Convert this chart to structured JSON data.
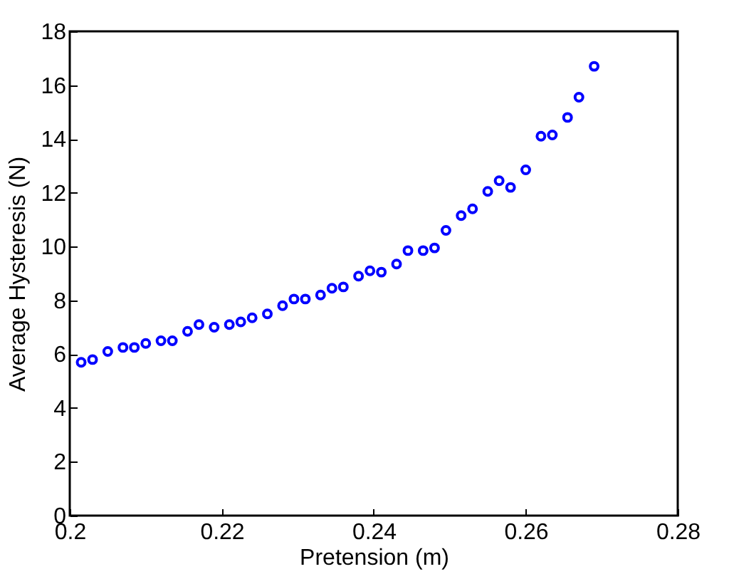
{
  "chart_data": {
    "type": "scatter",
    "xlabel": "Pretension (m)",
    "ylabel": "Average Hysteresis (N)",
    "marker": "circle",
    "grid": false,
    "xlim": [
      0.2,
      0.28
    ],
    "xticks": [
      0.2,
      0.22,
      0.24,
      0.26,
      0.28
    ],
    "ylim": [
      0,
      18
    ],
    "yticks": [
      0,
      2,
      4,
      6,
      8,
      10,
      12,
      14,
      16,
      18
    ],
    "series": [
      {
        "color": "#0000ff",
        "x": [
          0.2015,
          0.203,
          0.205,
          0.207,
          0.2085,
          0.21,
          0.212,
          0.2135,
          0.2155,
          0.217,
          0.219,
          0.221,
          0.2225,
          0.224,
          0.226,
          0.228,
          0.2295,
          0.231,
          0.233,
          0.2345,
          0.236,
          0.238,
          0.2395,
          0.241,
          0.243,
          0.2445,
          0.2465,
          0.248,
          0.2495,
          0.2515,
          0.253,
          0.255,
          0.2565,
          0.258,
          0.26,
          0.262,
          0.2635,
          0.2655,
          0.267,
          0.269
        ],
        "values": [
          5.7,
          5.8,
          6.1,
          6.25,
          6.25,
          6.4,
          6.5,
          6.5,
          6.85,
          7.1,
          7.0,
          7.1,
          7.2,
          7.35,
          7.5,
          7.8,
          8.05,
          8.05,
          8.2,
          8.45,
          8.5,
          8.9,
          9.1,
          9.05,
          9.35,
          9.85,
          9.85,
          9.95,
          10.6,
          11.15,
          11.4,
          12.05,
          12.45,
          12.2,
          12.85,
          14.1,
          14.15,
          14.8,
          15.55,
          16.7
        ]
      }
    ]
  }
}
